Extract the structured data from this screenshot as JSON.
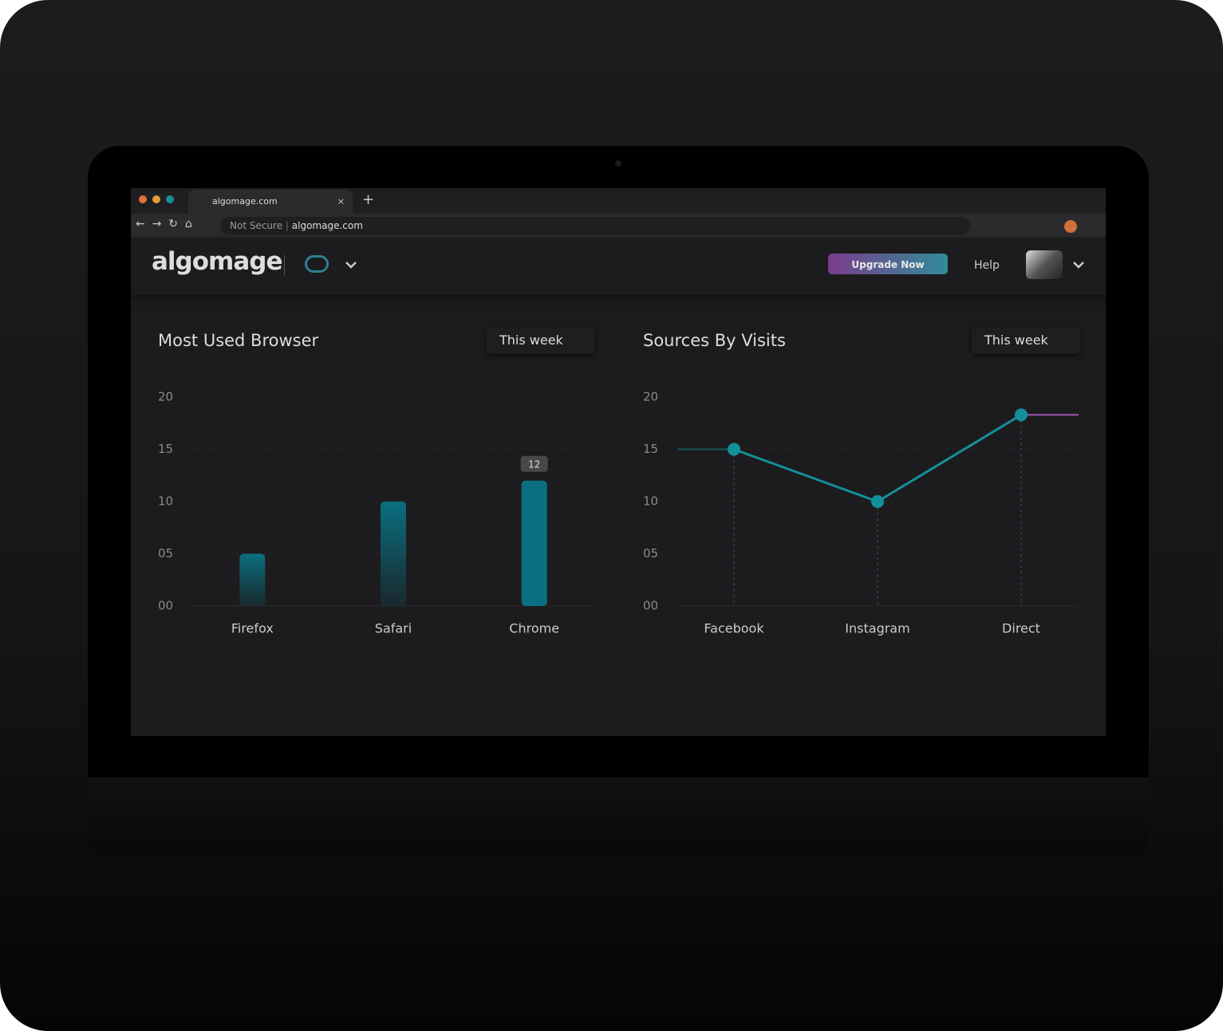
{
  "browser": {
    "tab_title": "algomage.com",
    "security": "Not Secure",
    "url": "algomage.com"
  },
  "header": {
    "logo": "algomage",
    "upgrade_button": "Upgrade Now",
    "help": "Help"
  },
  "chart_data": [
    {
      "type": "bar",
      "title": "Most Used Browser",
      "filter": "This week",
      "categories": [
        "Firefox",
        "Safari",
        "Chrome"
      ],
      "values": [
        5,
        10,
        12
      ],
      "color": "#0a6f80",
      "ylim": [
        0,
        20
      ],
      "yticks": [
        {
          "value": 0,
          "label": "00"
        },
        {
          "value": 5,
          "label": "05"
        },
        10,
        15,
        20
      ],
      "grid": true
    },
    {
      "type": "line",
      "title": "Sources By Visits",
      "filter": "This week",
      "categories": [
        "Facebook",
        "Instagram",
        "Direct"
      ],
      "values": [
        15,
        10,
        18.3
      ],
      "color": "#14909c",
      "ylim": [
        0,
        20
      ],
      "yticks": [
        {
          "value": 0,
          "label": "00"
        },
        {
          "value": 5,
          "label": "05"
        },
        10,
        15,
        20
      ],
      "grid": true
    }
  ]
}
